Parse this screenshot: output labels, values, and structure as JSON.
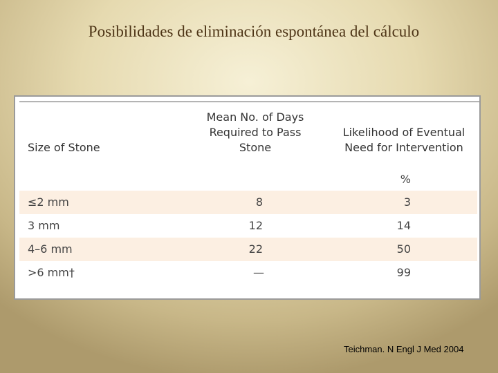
{
  "title": "Posibilidades de eliminación espontánea del cálculo",
  "table": {
    "headers": [
      [
        "Size of Stone"
      ],
      [
        "Mean No. of Days",
        "Required to Pass",
        "Stone"
      ],
      [
        "Likelihood of Eventual",
        "Need for Intervention"
      ]
    ],
    "unit": "%",
    "rows": [
      [
        "≤2 mm",
        8,
        3
      ],
      [
        "3 mm",
        12,
        14
      ],
      [
        "4–6 mm",
        22,
        50
      ],
      [
        ">6 mm†",
        "—",
        99
      ]
    ]
  },
  "citation": "Teichman. N Engl J Med 2004"
}
